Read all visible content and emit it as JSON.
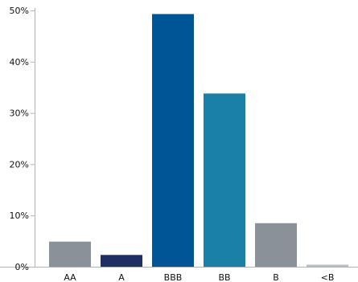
{
  "chart_data": {
    "type": "bar",
    "title": "",
    "xlabel": "",
    "ylabel": "",
    "categories": [
      "AA",
      "A",
      "BBB",
      "BB",
      "B",
      "<B"
    ],
    "values": [
      4.9,
      2.3,
      49.3,
      33.8,
      8.5,
      0.4
    ],
    "colors": [
      "#8a9199",
      "#1f2f63",
      "#005596",
      "#1b80a8",
      "#8a9199",
      "#b8bec4"
    ],
    "ylim": [
      0,
      50
    ],
    "yticks": [
      0,
      10,
      20,
      30,
      40,
      50
    ],
    "ytick_labels": [
      "0%",
      "10%",
      "20%",
      "30%",
      "40%",
      "50%"
    ],
    "grid": false,
    "legend": "none"
  }
}
